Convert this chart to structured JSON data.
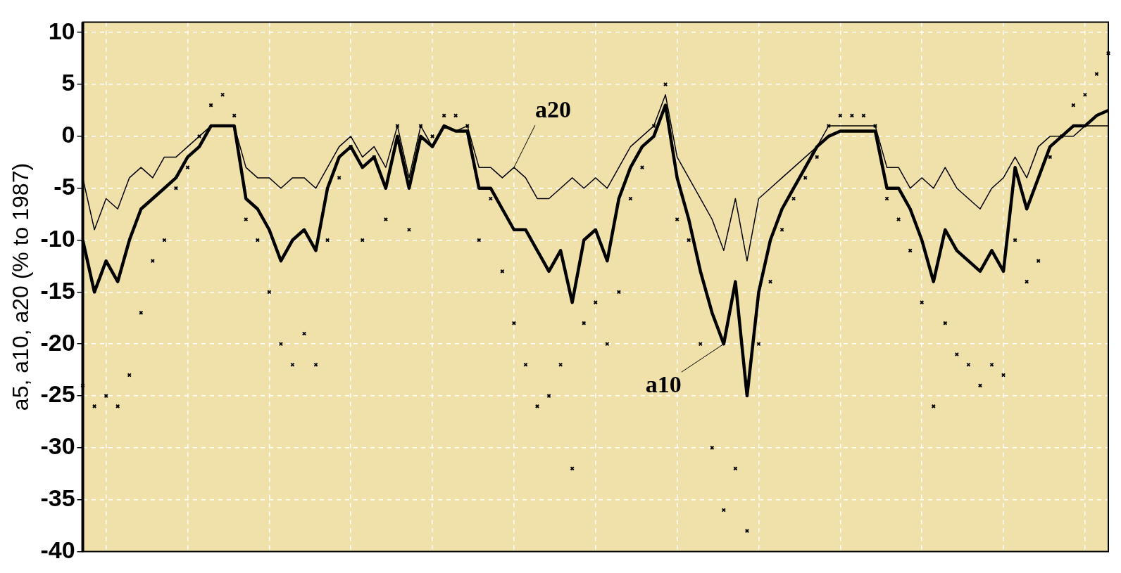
{
  "chart_data": {
    "type": "line",
    "ylabel": "a5, a10, a20 (% to 1987)",
    "categories": [
      null,
      null,
      null,
      null,
      null,
      null,
      null,
      null,
      null,
      null,
      null,
      null,
      null,
      null,
      null,
      null,
      null,
      null,
      null,
      null,
      null,
      null,
      null,
      null,
      null,
      null,
      null,
      null,
      null,
      null,
      null,
      null,
      null,
      null,
      null,
      null,
      null,
      null,
      null,
      null,
      null,
      null,
      null,
      null,
      null,
      null,
      null,
      null,
      null,
      null,
      null,
      null,
      null,
      null,
      null,
      null,
      null,
      null,
      null,
      null,
      null,
      null,
      null,
      null,
      null,
      null,
      null,
      null,
      null,
      null,
      null,
      null,
      null,
      null,
      null,
      null,
      null,
      null,
      null,
      null,
      null,
      null,
      null,
      null,
      null,
      null,
      null,
      null,
      null
    ],
    "series": [
      {
        "type": "scatter",
        "marker": "cross",
        "color": "#000000",
        "values": [
          -24,
          -26,
          -25,
          -26,
          -23,
          -17,
          -12,
          -10,
          -5,
          -3,
          0,
          3,
          4,
          2,
          -8,
          -10,
          -15,
          -20,
          -22,
          -19,
          -22,
          -10,
          -4,
          -1,
          -10,
          -2,
          -8,
          1,
          -9,
          1,
          0,
          2,
          2,
          1,
          -10,
          -6,
          -13,
          -18,
          -22,
          -26,
          -25,
          -22,
          -32,
          -18,
          -16,
          -20,
          -15,
          -6,
          -3,
          1,
          5,
          -8,
          -10,
          -20,
          -30,
          -36,
          -32,
          -38,
          -20,
          -14,
          -9,
          -6,
          -4,
          -2,
          1,
          2,
          2,
          2,
          1,
          -6,
          -8,
          -11,
          -16,
          -26,
          -18,
          -21,
          -22,
          -24,
          -22,
          -23,
          -10,
          -14,
          -12,
          -2,
          0,
          3,
          4,
          6,
          8
        ]
      },
      {
        "name": "a10",
        "type": "line",
        "line_style": "solid",
        "color": "#000000",
        "values": [
          -10,
          -15,
          -12,
          -14,
          -10,
          -7,
          -6,
          -5,
          -4,
          -2,
          -1,
          1,
          1,
          1,
          -6,
          -7,
          -9,
          -12,
          -10,
          -9,
          -11,
          -5,
          -2,
          -1,
          -3,
          -2,
          -5,
          0,
          -5,
          0,
          -1,
          1,
          0.5,
          0.5,
          -5,
          -5,
          -7,
          -9,
          -9,
          -11,
          -13,
          -11,
          -16,
          -10,
          -9,
          -12,
          -6,
          -3,
          -1,
          0,
          3,
          -4,
          -8,
          -13,
          -17,
          -20,
          -14,
          -25,
          -15,
          -10,
          -7,
          -5,
          -3,
          -1,
          0,
          0.5,
          0.5,
          0.5,
          0.5,
          -5,
          -5,
          -7,
          -10,
          -14,
          -9,
          -11,
          -12,
          -13,
          -11,
          -13,
          -3,
          -7,
          -4,
          -1,
          0,
          1,
          1,
          2,
          2.5
        ]
      },
      {
        "name": "a20",
        "type": "line",
        "line_style": "solid",
        "color": "#000000",
        "values": [
          -4,
          -9,
          -6,
          -7,
          -4,
          -3,
          -4,
          -2,
          -2,
          -1,
          0,
          1,
          1,
          1,
          -3,
          -4,
          -4,
          -5,
          -4,
          -4,
          -5,
          -3,
          -1,
          0,
          -2,
          -1,
          -3,
          1,
          -4,
          1,
          -1,
          1,
          0.5,
          1,
          -3,
          -3,
          -4,
          -3,
          -4,
          -6,
          -6,
          -5,
          -4,
          -5,
          -4,
          -5,
          -3,
          -1,
          0,
          1,
          4,
          -2,
          -4,
          -6,
          -8,
          -11,
          -6,
          -12,
          -6,
          -5,
          -4,
          -3,
          -2,
          -1,
          1,
          1,
          1,
          1,
          1,
          -3,
          -3,
          -5,
          -4,
          -5,
          -3,
          -5,
          -6,
          -7,
          -5,
          -4,
          -2,
          -4,
          -1,
          0,
          0,
          0,
          1,
          1,
          1
        ]
      }
    ],
    "ylim": [
      -40,
      11
    ],
    "yticks": [
      -40,
      -35,
      -30,
      -25,
      -20,
      -15,
      -10,
      -5,
      0,
      5,
      10
    ],
    "grid": true,
    "tick_labels": "y"
  }
}
